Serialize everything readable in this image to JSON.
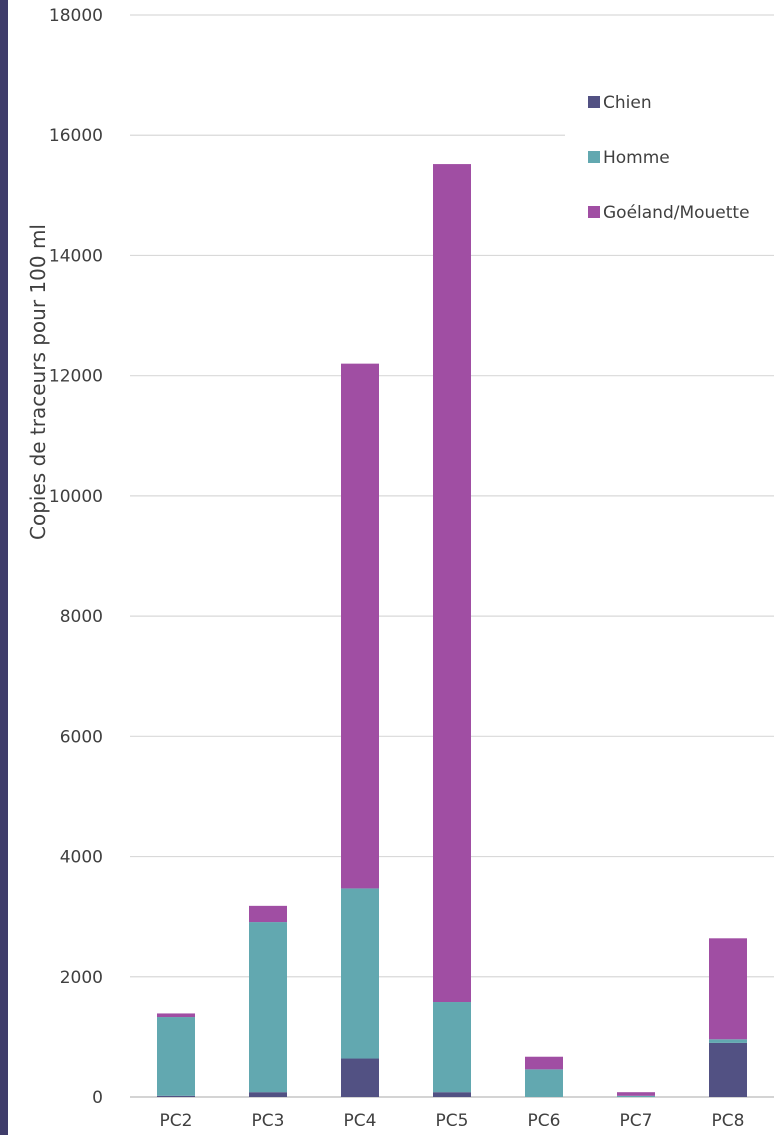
{
  "chart_data": {
    "type": "bar",
    "stacked": true,
    "title": "",
    "xlabel": "",
    "ylabel": "Copies de traceurs pour 100 ml",
    "ylim": [
      0,
      18000
    ],
    "yticks": [
      0,
      2000,
      4000,
      6000,
      8000,
      10000,
      12000,
      14000,
      16000,
      18000
    ],
    "ytick_labels": [
      "0",
      "2000",
      "4000",
      "6000",
      "8000",
      "10000",
      "12000",
      "14000",
      "16000",
      "18000"
    ],
    "grid": true,
    "legend_position": "top-right",
    "categories": [
      "PC2",
      "PC3",
      "PC4",
      "PC5",
      "PC6",
      "PC7",
      "PC8"
    ],
    "series": [
      {
        "name": "Chien",
        "color": "#525183",
        "values": [
          20,
          80,
          640,
          80,
          0,
          0,
          900
        ]
      },
      {
        "name": "Homme",
        "color": "#62a8b0",
        "values": [
          1310,
          2830,
          2830,
          1500,
          460,
          20,
          60
        ]
      },
      {
        "name": "Goéland/Mouette",
        "color": "#a04ea3",
        "values": [
          60,
          270,
          8730,
          13940,
          210,
          60,
          1680
        ]
      }
    ]
  }
}
